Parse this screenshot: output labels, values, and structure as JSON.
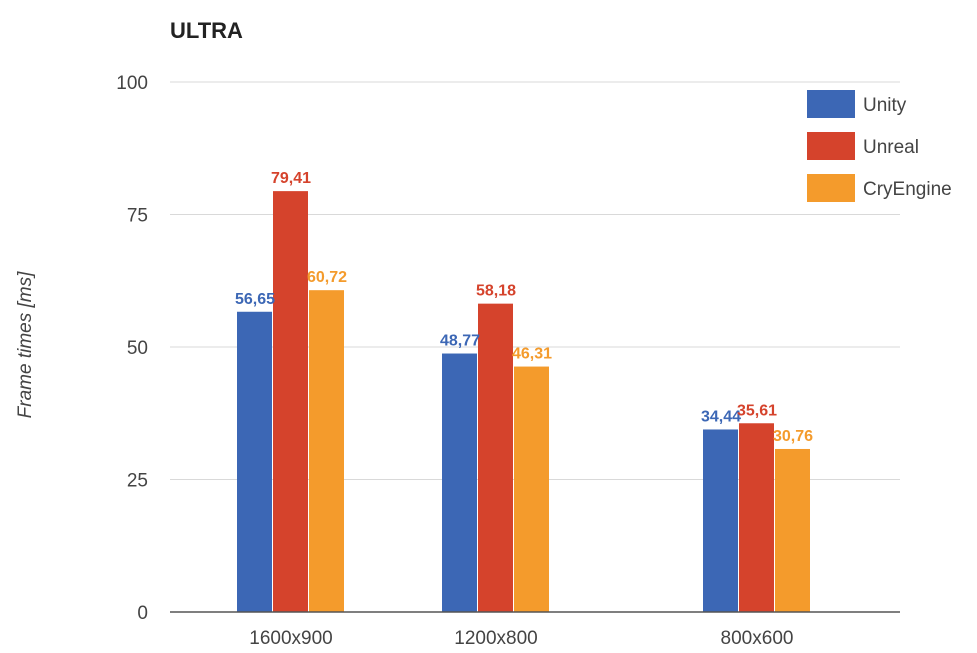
{
  "chart_data": {
    "type": "bar",
    "title": "ULTRA",
    "ylabel": "Frame times [ms]",
    "xlabel": "",
    "categories": [
      "1600x900",
      "1200x800",
      "800x600"
    ],
    "ylim": [
      0,
      100
    ],
    "yticks": [
      0,
      25,
      50,
      75,
      100
    ],
    "grid": true,
    "legend_position": "top-right",
    "series": [
      {
        "name": "Unity",
        "color": "#3c67b5",
        "values": [
          56.65,
          48.77,
          34.44
        ],
        "labels": [
          "56,65",
          "48,77",
          "34,44"
        ]
      },
      {
        "name": "Unreal",
        "color": "#d5432c",
        "values": [
          79.41,
          58.18,
          35.61
        ],
        "labels": [
          "79,41",
          "58,18",
          "35,61"
        ]
      },
      {
        "name": "CryEngine",
        "color": "#f49b2c",
        "values": [
          60.72,
          46.31,
          30.76
        ],
        "labels": [
          "60,72",
          "46,31",
          "30,76"
        ]
      }
    ]
  }
}
